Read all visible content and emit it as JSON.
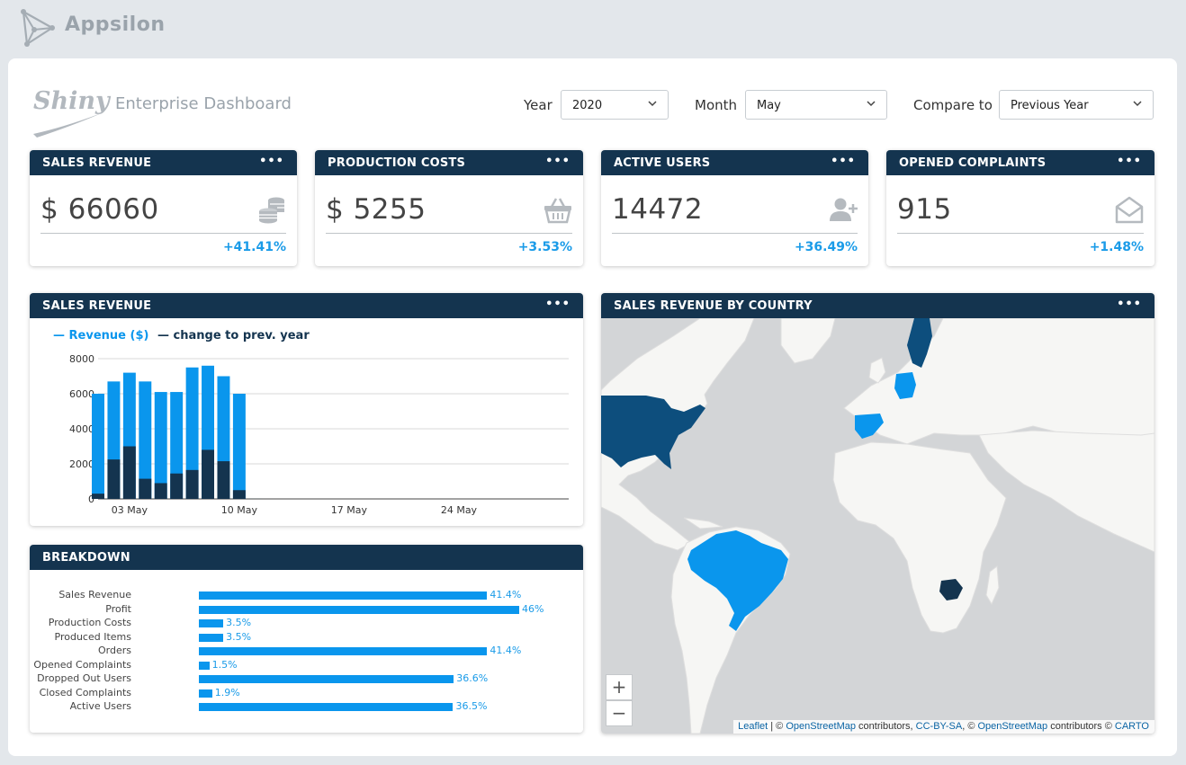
{
  "brand": {
    "name": "Appsilon"
  },
  "header": {
    "logo_text": "Shiny",
    "title": "Enterprise Dashboard"
  },
  "controls": {
    "year": {
      "label": "Year",
      "value": "2020"
    },
    "month": {
      "label": "Month",
      "value": "May"
    },
    "compare": {
      "label": "Compare to",
      "value": "Previous Year"
    }
  },
  "kpis": [
    {
      "title": "SALES REVENUE",
      "value": "$ 66060",
      "change": "+41.41%",
      "icon": "coins-stack-icon"
    },
    {
      "title": "PRODUCTION COSTS",
      "value": "$ 5255",
      "change": "+3.53%",
      "icon": "shopping-basket-icon"
    },
    {
      "title": "ACTIVE USERS",
      "value": "14472",
      "change": "+36.49%",
      "icon": "user-plus-icon"
    },
    {
      "title": "OPENED COMPLAINTS",
      "value": "915",
      "change": "+1.48%",
      "icon": "envelope-open-icon"
    }
  ],
  "menu_dots": "•••",
  "revenue_panel": {
    "title": "SALES REVENUE"
  },
  "breakdown_panel": {
    "title": "BREAKDOWN"
  },
  "map_panel": {
    "title": "SALES REVENUE BY COUNTRY",
    "zoom_in": "+",
    "zoom_out": "−",
    "attribution": {
      "leaflet": "Leaflet",
      "sep1": " | © ",
      "osm1": "OpenStreetMap",
      "contrib1": " contributors, ",
      "ccbysa": "CC-BY-SA",
      "sep2": ", © ",
      "osm2": "OpenStreetMap",
      "contrib2": " contributors © ",
      "carto": "CARTO"
    },
    "highlighted_countries": [
      "United States",
      "Brazil",
      "Spain",
      "Germany",
      "Sweden",
      "Zimbabwe"
    ]
  },
  "colors": {
    "navy": "#14344f",
    "accent": "#0a96ed",
    "dark_series": "#14344f",
    "map_dark": "#0d4e7d",
    "map_light": "#0a96ed"
  },
  "chart_data": [
    {
      "type": "bar",
      "stacked": false,
      "x": [
        "2020-05-01",
        "2020-05-02",
        "2020-05-03",
        "2020-05-04",
        "2020-05-05",
        "2020-05-06",
        "2020-05-07",
        "2020-05-08",
        "2020-05-09",
        "2020-05-10",
        "2020-05-11"
      ],
      "x_tick_labels": [
        "03 May",
        "10 May",
        "17 May",
        "24 May"
      ],
      "x_tick_dates": [
        "2020-05-03",
        "2020-05-10",
        "2020-05-17",
        "2020-05-24"
      ],
      "series": [
        {
          "name": "Revenue ($)",
          "color": "#0a96ed",
          "values": [
            6000,
            6700,
            7200,
            6700,
            6100,
            6100,
            7500,
            7600,
            7000,
            6000,
            1
          ]
        },
        {
          "name": "change to prev. year",
          "color": "#14344f",
          "values": [
            300,
            2250,
            3000,
            1150,
            900,
            1450,
            1650,
            2800,
            2150,
            500,
            1
          ]
        }
      ],
      "ylim": [
        0,
        8000
      ],
      "y_ticks": [
        0,
        2000,
        4000,
        6000,
        8000
      ],
      "grid": true,
      "legend": "top-left"
    },
    {
      "type": "bar",
      "orientation": "horizontal",
      "categories": [
        "Sales Revenue",
        "Profit",
        "Production Costs",
        "Produced Items",
        "Orders",
        "Opened Complaints",
        "Dropped Out Users",
        "Closed Complaints",
        "Active Users"
      ],
      "values": [
        41.4,
        46,
        3.5,
        3.5,
        41.4,
        1.5,
        36.6,
        1.9,
        36.5
      ],
      "value_labels": [
        "41.4%",
        "46%",
        "3.5%",
        "3.5%",
        "41.4%",
        "1.5%",
        "36.6%",
        "1.9%",
        "36.5%"
      ],
      "xlim": [
        0,
        46
      ]
    }
  ]
}
